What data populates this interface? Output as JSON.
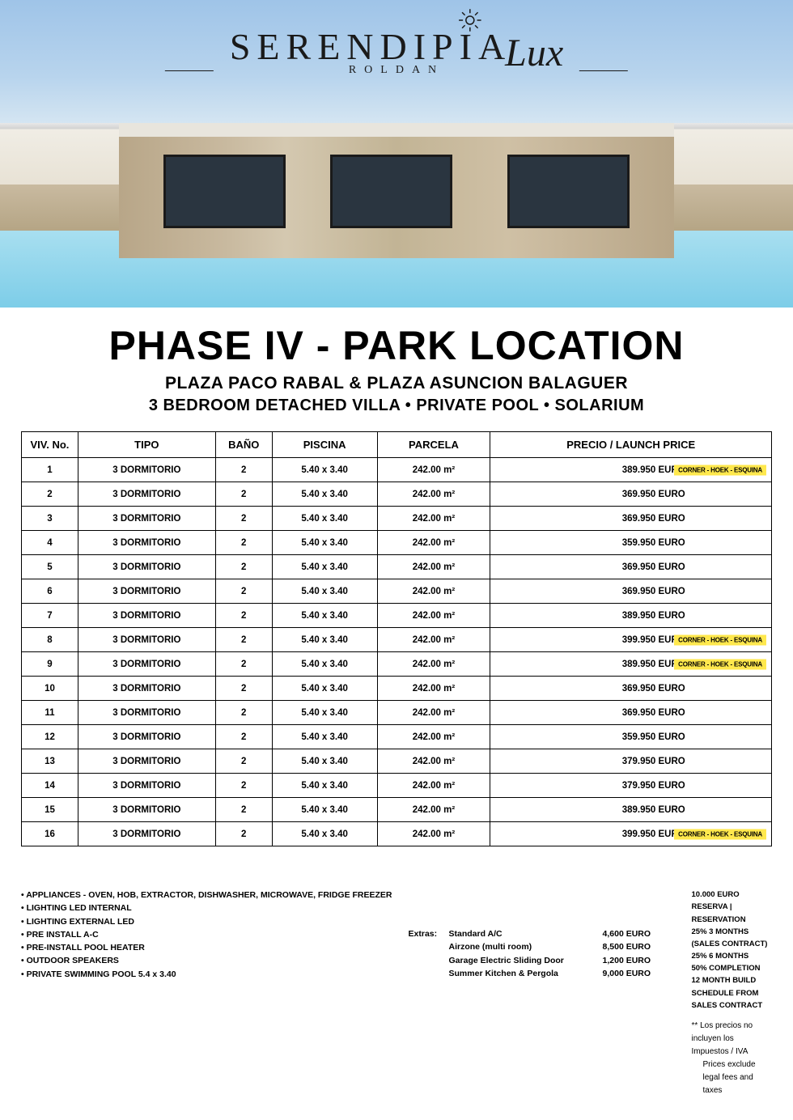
{
  "logo": {
    "main": "SERENDIPIA",
    "lux": "Lux",
    "sub": "ROLDAN"
  },
  "heading": {
    "title": "PHASE IV - PARK LOCATION",
    "subtitle": "PLAZA PACO RABAL & PLAZA ASUNCION BALAGUER",
    "features": "3 BEDROOM DETACHED VILLA •  PRIVATE POOL • SOLARIUM"
  },
  "table": {
    "columns": [
      "VIV. No.",
      "TIPO",
      "BAÑO",
      "PISCINA",
      "PARCELA",
      "PRECIO / LAUNCH PRICE"
    ],
    "rows": [
      {
        "viv": "1",
        "tipo": "3 DORMITORIO",
        "bano": "2",
        "piscina": "5.40 x 3.40",
        "parcela": "242.00 m²",
        "precio": "389.950 EURO",
        "corner": true
      },
      {
        "viv": "2",
        "tipo": "3 DORMITORIO",
        "bano": "2",
        "piscina": "5.40 x 3.40",
        "parcela": "242.00 m²",
        "precio": "369.950 EURO",
        "corner": false
      },
      {
        "viv": "3",
        "tipo": "3 DORMITORIO",
        "bano": "2",
        "piscina": "5.40 x 3.40",
        "parcela": "242.00 m²",
        "precio": "369.950 EURO",
        "corner": false
      },
      {
        "viv": "4",
        "tipo": "3 DORMITORIO",
        "bano": "2",
        "piscina": "5.40 x 3.40",
        "parcela": "242.00 m²",
        "precio": "359.950 EURO",
        "corner": false
      },
      {
        "viv": "5",
        "tipo": "3 DORMITORIO",
        "bano": "2",
        "piscina": "5.40 x 3.40",
        "parcela": "242.00 m²",
        "precio": "369.950 EURO",
        "corner": false
      },
      {
        "viv": "6",
        "tipo": "3 DORMITORIO",
        "bano": "2",
        "piscina": "5.40 x 3.40",
        "parcela": "242.00 m²",
        "precio": "369.950 EURO",
        "corner": false
      },
      {
        "viv": "7",
        "tipo": "3 DORMITORIO",
        "bano": "2",
        "piscina": "5.40 x 3.40",
        "parcela": "242.00 m²",
        "precio": "389.950 EURO",
        "corner": false
      },
      {
        "viv": "8",
        "tipo": "3 DORMITORIO",
        "bano": "2",
        "piscina": "5.40 x 3.40",
        "parcela": "242.00 m²",
        "precio": "399.950 EURO",
        "corner": true
      },
      {
        "viv": "9",
        "tipo": "3 DORMITORIO",
        "bano": "2",
        "piscina": "5.40 x 3.40",
        "parcela": "242.00 m²",
        "precio": "389.950 EURO",
        "corner": true
      },
      {
        "viv": "10",
        "tipo": "3 DORMITORIO",
        "bano": "2",
        "piscina": "5.40 x 3.40",
        "parcela": "242.00 m²",
        "precio": "369.950 EURO",
        "corner": false
      },
      {
        "viv": "11",
        "tipo": "3 DORMITORIO",
        "bano": "2",
        "piscina": "5.40 x 3.40",
        "parcela": "242.00 m²",
        "precio": "369.950 EURO",
        "corner": false
      },
      {
        "viv": "12",
        "tipo": "3 DORMITORIO",
        "bano": "2",
        "piscina": "5.40 x 3.40",
        "parcela": "242.00 m²",
        "precio": "359.950 EURO",
        "corner": false
      },
      {
        "viv": "13",
        "tipo": "3 DORMITORIO",
        "bano": "2",
        "piscina": "5.40 x 3.40",
        "parcela": "242.00 m²",
        "precio": "379.950 EURO",
        "corner": false
      },
      {
        "viv": "14",
        "tipo": "3 DORMITORIO",
        "bano": "2",
        "piscina": "5.40 x 3.40",
        "parcela": "242.00 m²",
        "precio": "379.950 EURO",
        "corner": false
      },
      {
        "viv": "15",
        "tipo": "3 DORMITORIO",
        "bano": "2",
        "piscina": "5.40 x 3.40",
        "parcela": "242.00 m²",
        "precio": "389.950 EURO",
        "corner": false
      },
      {
        "viv": "16",
        "tipo": "3 DORMITORIO",
        "bano": "2",
        "piscina": "5.40 x 3.40",
        "parcela": "242.00 m²",
        "precio": "399.950 EURO",
        "corner": true
      }
    ],
    "corner_badge_text": "CORNER - HOEK - ESQUINA",
    "corner_badge_color": "#ffe84d"
  },
  "footer": {
    "bullets": [
      "APPLIANCES - OVEN, HOB, EXTRACTOR, DISHWASHER, MICROWAVE, FRIDGE FREEZER",
      "LIGHTING LED INTERNAL",
      "LIGHTING EXTERNAL LED",
      "PRE INSTALL A-C",
      "PRE-INSTALL POOL HEATER",
      "OUTDOOR SPEAKERS",
      "PRIVATE SWIMMING POOL 5.4 x 3.40"
    ],
    "extras_label": "Extras:",
    "extras": [
      {
        "name": "Standard A/C",
        "price": "4,600 EURO"
      },
      {
        "name": "Airzone (multi room)",
        "price": "8,500 EURO"
      },
      {
        "name": "Garage Electric Sliding Door",
        "price": "1,200 EURO"
      },
      {
        "name": "Summer Kitchen & Pergola",
        "price": "9,000 EURO"
      }
    ],
    "payment": [
      "10.000 EURO RESERVA | RESERVATION",
      "25% 3 MONTHS  (SALES CONTRACT)",
      "25% 6 MONTHS",
      "50% COMPLETION",
      "12 MONTH BUILD SCHEDULE FROM SALES CONTRACT"
    ],
    "disclaimer1": "** Los precios no incluyen los Impuestos / IVA",
    "disclaimer2": "Prices exclude legal fees and taxes"
  },
  "colors": {
    "text": "#000000",
    "badge_bg": "#ffe84d",
    "sky": "#9fc4e8",
    "pool": "#7dcde8"
  }
}
